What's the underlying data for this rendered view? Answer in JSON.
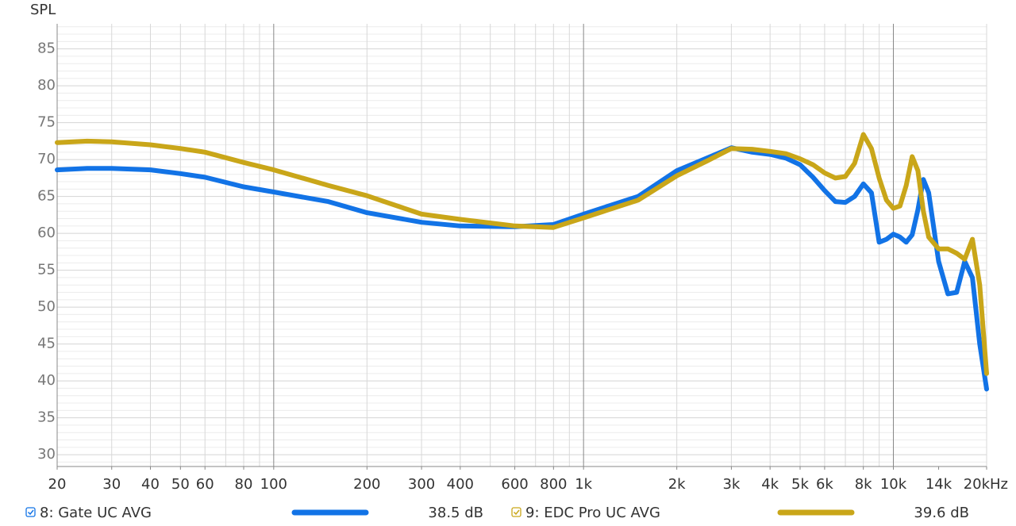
{
  "chart_data": {
    "type": "line",
    "y_label": "SPL",
    "xscale": "log",
    "xlim": [
      20,
      20000
    ],
    "ylim": [
      28.4,
      88.4
    ],
    "xticks": [
      20,
      30,
      40,
      50,
      60,
      80,
      100,
      200,
      300,
      400,
      600,
      800,
      {
        "value": 1000,
        "label": "1k"
      },
      {
        "value": 2000,
        "label": "2k"
      },
      {
        "value": 3000,
        "label": "3k"
      },
      {
        "value": 4000,
        "label": "4k"
      },
      {
        "value": 5000,
        "label": "5k"
      },
      {
        "value": 6000,
        "label": "6k"
      },
      {
        "value": 8000,
        "label": "8k"
      },
      {
        "value": 10000,
        "label": "10k"
      },
      {
        "value": 14000,
        "label": "14k"
      },
      {
        "value": 20000,
        "label": "20kHz"
      }
    ],
    "yticks": [
      30,
      35,
      40,
      45,
      50,
      55,
      60,
      65,
      70,
      75,
      80,
      85
    ],
    "xgrid": [
      20,
      30,
      40,
      50,
      60,
      70,
      80,
      90,
      100,
      200,
      300,
      400,
      500,
      600,
      700,
      800,
      900,
      1000,
      2000,
      3000,
      4000,
      5000,
      6000,
      7000,
      8000,
      9000,
      10000,
      20000
    ],
    "ygrid": [
      29,
      30,
      31,
      32,
      33,
      34,
      35,
      36,
      37,
      38,
      39,
      40,
      41,
      42,
      43,
      44,
      45,
      46,
      47,
      48,
      49,
      50,
      51,
      52,
      53,
      54,
      55,
      56,
      57,
      58,
      59,
      60,
      61,
      62,
      63,
      64,
      65,
      66,
      67,
      68,
      69,
      70,
      71,
      72,
      73,
      74,
      75,
      76,
      77,
      78,
      79,
      80,
      81,
      82,
      83,
      84,
      85,
      86,
      87,
      88
    ],
    "grid": true,
    "x": [
      20,
      25,
      30,
      40,
      50,
      60,
      80,
      100,
      150,
      200,
      300,
      400,
      600,
      800,
      1000,
      1500,
      2000,
      2500,
      3000,
      3500,
      4000,
      4500,
      5000,
      5500,
      6000,
      6500,
      7000,
      7500,
      8000,
      8500,
      9000,
      9500,
      10000,
      10500,
      11000,
      11500,
      12000,
      12500,
      13000,
      14000,
      15000,
      16000,
      17000,
      18000,
      19000,
      20000
    ],
    "series": [
      {
        "name": "8: Gate UC AVG",
        "color": "#1273e6",
        "legend_value": "38.5 dB",
        "values": [
          68.6,
          68.8,
          68.8,
          68.6,
          68.1,
          67.6,
          66.3,
          65.6,
          64.3,
          62.8,
          61.5,
          61.0,
          60.9,
          61.2,
          62.6,
          65.0,
          68.5,
          70.2,
          71.6,
          71.0,
          70.7,
          70.2,
          69.3,
          67.6,
          65.8,
          64.3,
          64.2,
          65.0,
          66.7,
          65.5,
          58.8,
          59.2,
          59.9,
          59.5,
          58.8,
          59.8,
          63.2,
          67.3,
          65.5,
          56.2,
          51.8,
          52.0,
          56.2,
          54.0,
          45.0,
          38.9
        ]
      },
      {
        "name": "9: EDC Pro UC AVG",
        "color": "#c9a619",
        "legend_value": "39.6 dB",
        "values": [
          72.3,
          72.5,
          72.4,
          72.0,
          71.5,
          71.0,
          69.6,
          68.6,
          66.5,
          65.1,
          62.6,
          61.9,
          61.0,
          60.8,
          62.1,
          64.5,
          67.8,
          69.8,
          71.5,
          71.4,
          71.1,
          70.8,
          70.1,
          69.3,
          68.2,
          67.5,
          67.7,
          69.5,
          73.4,
          71.5,
          67.5,
          64.5,
          63.4,
          63.7,
          66.5,
          70.4,
          68.5,
          63.0,
          59.5,
          57.9,
          57.9,
          57.3,
          56.5,
          59.2,
          53.0,
          41.0
        ]
      }
    ]
  }
}
